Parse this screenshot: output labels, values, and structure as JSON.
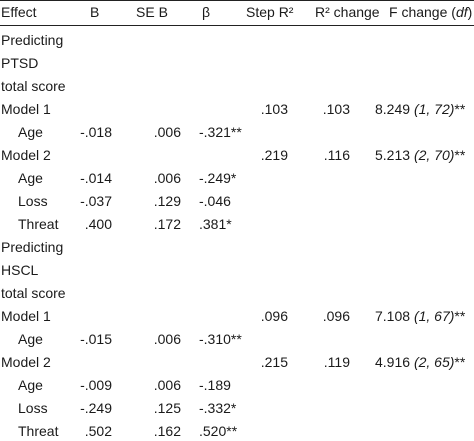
{
  "table": {
    "columns": {
      "effect": "Effect",
      "b": "B",
      "se_b": "SE B",
      "beta": "β",
      "step_r2": "Step R²",
      "r2_change": "R² change",
      "f_change": {
        "pre": "F change (",
        "italic": "df",
        "post": ")"
      }
    },
    "sections": [
      {
        "label_lines": [
          "Predicting",
          "PTSD",
          "total score"
        ],
        "models": [
          {
            "name": "Model 1",
            "step_r2": ".103",
            "r2_change": ".103",
            "f_change": {
              "f": "8.249",
              "df": "(1, 72)",
              "sig": "**"
            },
            "predictors": [
              {
                "name": "Age",
                "b": "-.018",
                "se_b": ".006",
                "beta": "-.321**"
              }
            ]
          },
          {
            "name": "Model 2",
            "step_r2": ".219",
            "r2_change": ".116",
            "f_change": {
              "f": "5.213",
              "df": "(2, 70)",
              "sig": "**"
            },
            "predictors": [
              {
                "name": "Age",
                "b": "-.014",
                "se_b": ".006",
                "beta": "-.249*"
              },
              {
                "name": "Loss",
                "b": "-.037",
                "se_b": ".129",
                "beta": "-.046"
              },
              {
                "name": "Threat",
                "b": ".400",
                "se_b": ".172",
                "beta": ".381*"
              }
            ]
          }
        ]
      },
      {
        "label_lines": [
          "Predicting",
          "HSCL",
          "total score"
        ],
        "models": [
          {
            "name": "Model 1",
            "step_r2": ".096",
            "r2_change": ".096",
            "f_change": {
              "f": "7.108",
              "df": "(1, 67)",
              "sig": "**"
            },
            "predictors": [
              {
                "name": "Age",
                "b": "-.015",
                "se_b": ".006",
                "beta": "-.310**"
              }
            ]
          },
          {
            "name": "Model 2",
            "step_r2": ".215",
            "r2_change": ".119",
            "f_change": {
              "f": "4.916",
              "df": "(2, 65)",
              "sig": "**"
            },
            "predictors": [
              {
                "name": "Age",
                "b": "-.009",
                "se_b": ".006",
                "beta": "-.189"
              },
              {
                "name": "Loss",
                "b": "-.249",
                "se_b": ".125",
                "beta": "-.332*"
              },
              {
                "name": "Threat",
                "b": ".502",
                "se_b": ".162",
                "beta": ".520**"
              }
            ]
          }
        ]
      }
    ]
  }
}
